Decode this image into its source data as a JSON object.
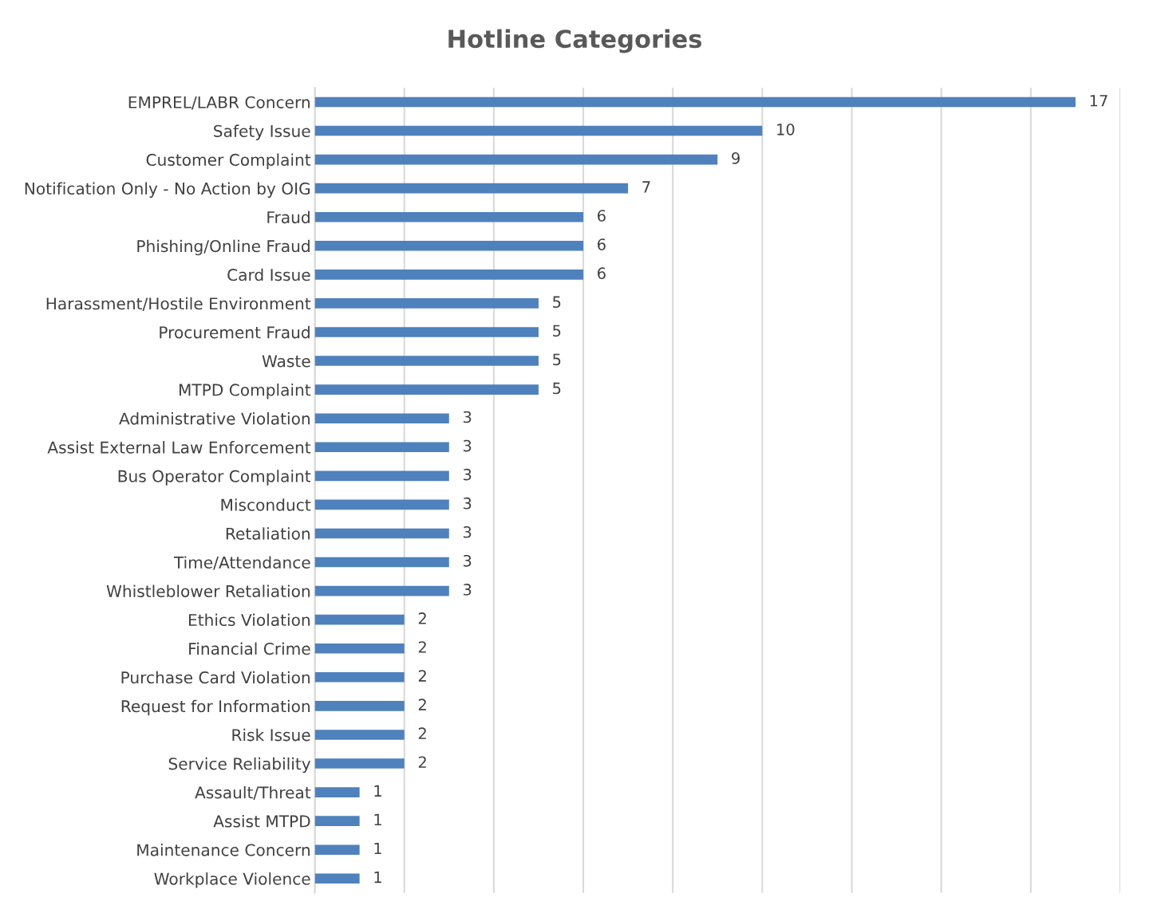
{
  "chart_data": {
    "type": "bar",
    "orientation": "horizontal",
    "title": "Hotline Categories",
    "categories": [
      "EMPREL/LABR Concern",
      "Safety Issue",
      "Customer Complaint",
      "Notification Only - No Action by OIG",
      "Fraud",
      "Phishing/Online Fraud",
      "Card Issue",
      "Harassment/Hostile Environment",
      "Procurement Fraud",
      "Waste",
      "MTPD Complaint",
      "Administrative Violation",
      "Assist External Law Enforcement",
      "Bus Operator Complaint",
      "Misconduct",
      "Retaliation",
      "Time/Attendance",
      "Whistleblower Retaliation",
      "Ethics Violation",
      "Financial Crime",
      "Purchase Card Violation",
      "Request for Information",
      "Risk Issue",
      "Service Reliability",
      "Assault/Threat",
      "Assist MTPD",
      "Maintenance Concern",
      "Workplace Violence"
    ],
    "values": [
      17,
      10,
      9,
      7,
      6,
      6,
      6,
      5,
      5,
      5,
      5,
      3,
      3,
      3,
      3,
      3,
      3,
      3,
      2,
      2,
      2,
      2,
      2,
      2,
      1,
      1,
      1,
      1
    ],
    "color": "#4f81bd",
    "data_labels": true,
    "grid": "x",
    "tick_labels": "y",
    "xlim": [
      0,
      18
    ],
    "xticks": [
      {
        "value": 0,
        "label": null
      },
      {
        "value": 2,
        "label": null
      },
      {
        "value": 4,
        "label": null
      },
      {
        "value": 6,
        "label": null
      },
      {
        "value": 8,
        "label": null
      },
      {
        "value": 10,
        "label": null
      },
      {
        "value": 12,
        "label": null
      },
      {
        "value": 14,
        "label": null
      },
      {
        "value": 16,
        "label": null
      },
      {
        "value": 18,
        "label": null
      }
    ],
    "legend": false
  }
}
